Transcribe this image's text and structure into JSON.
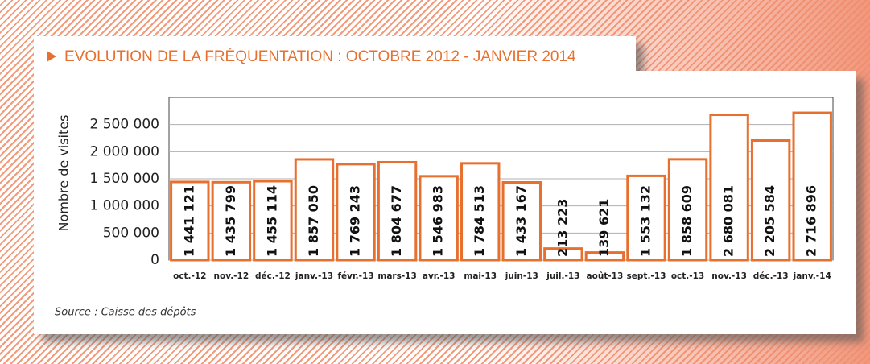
{
  "chart_data": {
    "type": "bar",
    "title": "EVOLUTION DE LA FRÉQUENTATION : OCTOBRE 2012 - JANVIER 2014",
    "y_label": "Nombre de visites",
    "source": "Source : Caisse des dépôts",
    "categories": [
      "oct.-12",
      "nov.-12",
      "déc.-12",
      "janv.-13",
      "févr.-13",
      "mars-13",
      "avr.-13",
      "mai-13",
      "juin-13",
      "juil.-13",
      "août-13",
      "sept.-13",
      "oct.-13",
      "nov.-13",
      "déc.-13",
      "janv.-14"
    ],
    "values": [
      1441121,
      1435799,
      1455114,
      1857050,
      1769243,
      1804677,
      1546983,
      1784513,
      1433167,
      213223,
      139621,
      1553132,
      1858609,
      2680081,
      2205584,
      2716896
    ],
    "value_labels": [
      "1 441 121",
      "1 435 799",
      "1 455 114",
      "1 857 050",
      "1 769 243",
      "1 804 677",
      "1 546 983",
      "1 784 513",
      "1 433 167",
      "213 223",
      "139 621",
      "1 553 132",
      "1 858 609",
      "2 680 081",
      "2 205 584",
      "2 716 896"
    ],
    "color": "#e8702f",
    "ylim": [
      0,
      3000000
    ],
    "yticks": [
      0,
      {
        "value": 500000,
        "label": "500 000"
      },
      {
        "value": 1000000,
        "label": "1 000 000"
      },
      {
        "value": 1500000,
        "label": "1 500 000"
      },
      {
        "value": 2000000,
        "label": "2 000 000"
      },
      {
        "value": 2500000,
        "label": "2 500 000"
      }
    ],
    "grid": true
  }
}
